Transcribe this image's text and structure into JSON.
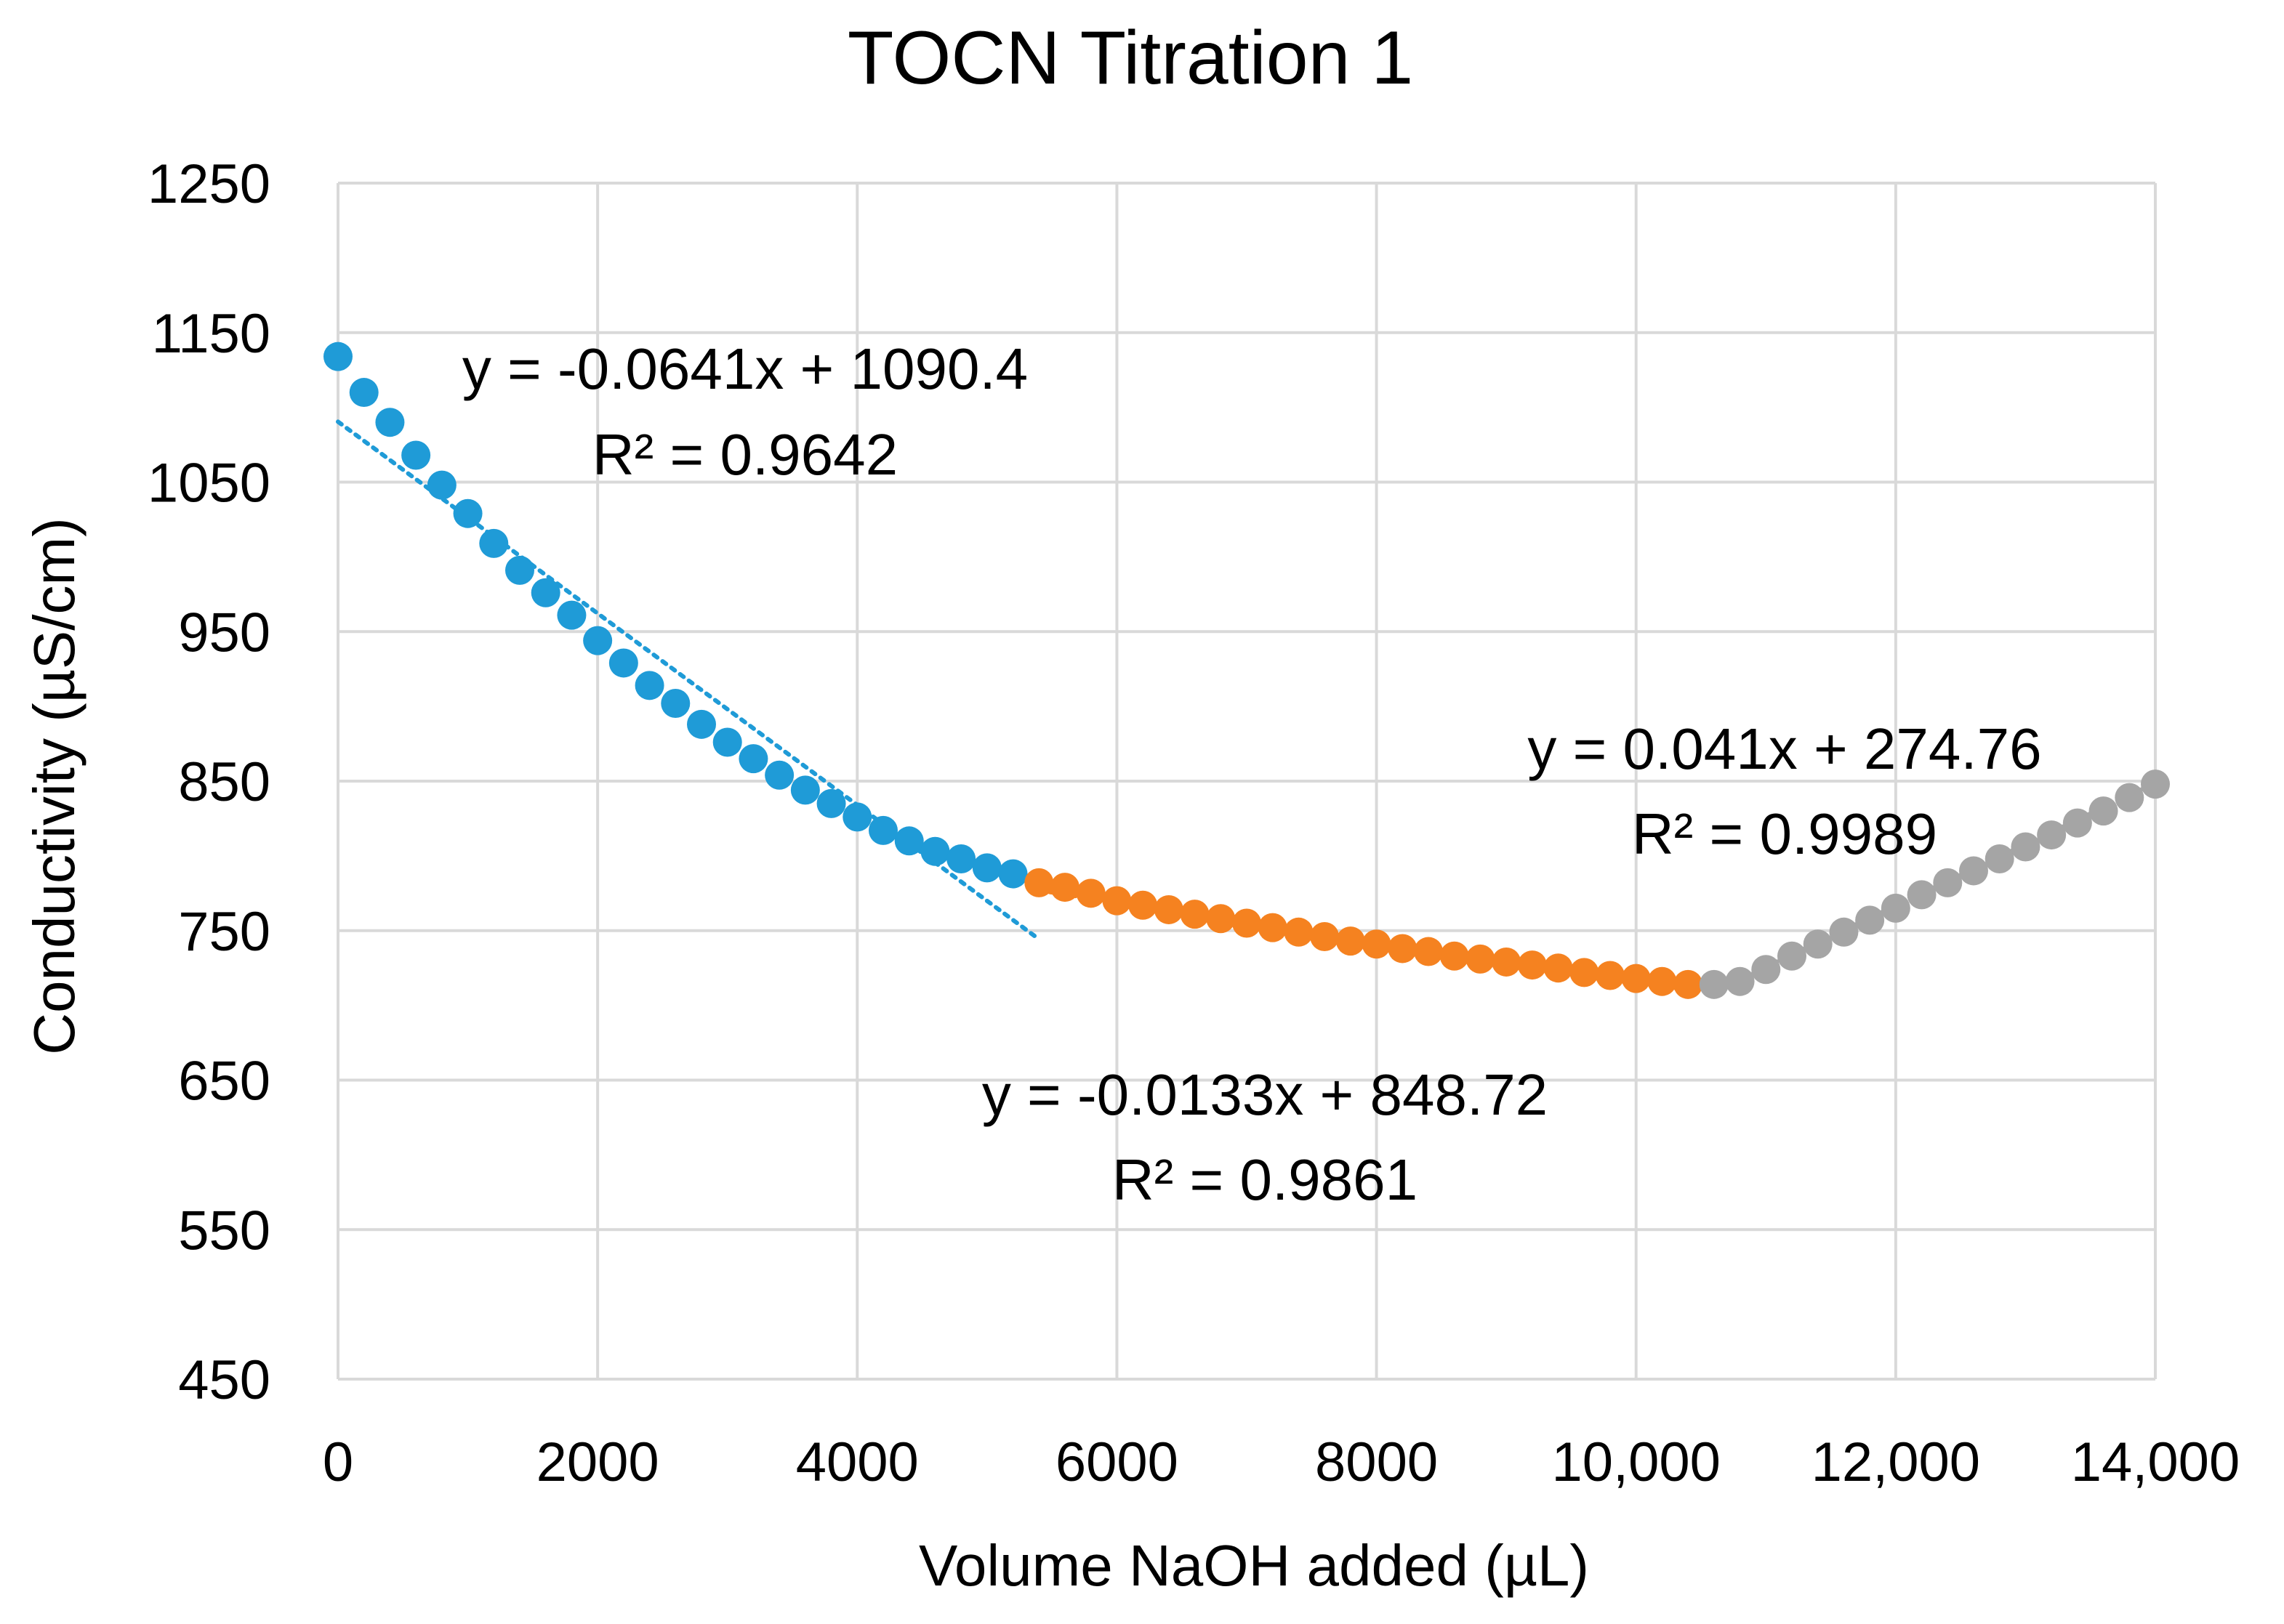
{
  "chart_data": {
    "type": "scatter",
    "title": "TOCN Titration 1",
    "xlabel": "Volume NaOH added (µL)",
    "ylabel": "Conductivity (µS/cm)",
    "xlim": [
      0,
      14000
    ],
    "ylim": [
      450,
      1250
    ],
    "x_ticks": [
      0,
      2000,
      4000,
      6000,
      8000,
      10000,
      12000,
      14000
    ],
    "x_tick_labels": [
      "0",
      "2000",
      "4000",
      "6000",
      "8000",
      "10,000",
      "12,000",
      "14,000"
    ],
    "y_ticks": [
      450,
      550,
      650,
      750,
      850,
      950,
      1050,
      1150,
      1250
    ],
    "y_tick_labels": [
      "450",
      "550",
      "650",
      "750",
      "850",
      "950",
      "1050",
      "1150",
      "1250"
    ],
    "grid": true,
    "legend": "none",
    "series": [
      {
        "color": "#1F9BD7",
        "x": [
          0,
          200,
          400,
          600,
          800,
          1000,
          1200,
          1400,
          1600,
          1800,
          2000,
          2200,
          2400,
          2600,
          2800,
          3000,
          3200,
          3400,
          3600,
          3800,
          4000,
          4200,
          4400,
          4600,
          4800,
          5000,
          5200
        ],
        "y": [
          1134,
          1110,
          1090,
          1068,
          1048,
          1029,
          1009,
          991,
          976,
          961,
          944,
          929,
          914,
          902,
          888,
          876,
          865,
          854,
          844,
          835,
          826,
          817,
          810,
          803,
          798,
          792,
          788
        ]
      },
      {
        "color": "#F58220",
        "x": [
          5400,
          5600,
          5800,
          6000,
          6200,
          6400,
          6600,
          6800,
          7000,
          7200,
          7400,
          7600,
          7800,
          8000,
          8200,
          8400,
          8600,
          8800,
          9000,
          9200,
          9400,
          9600,
          9800,
          10000,
          10200,
          10400
        ],
        "y": [
          782,
          779,
          775,
          770,
          767,
          764,
          761,
          758,
          755,
          752,
          749,
          746,
          743,
          741,
          738,
          736,
          733,
          731,
          729,
          727,
          725,
          722,
          720,
          718,
          716,
          714
        ]
      },
      {
        "color": "#A5A5A5",
        "x": [
          10600,
          10800,
          11000,
          11200,
          11400,
          11600,
          11800,
          12000,
          12200,
          12400,
          12600,
          12800,
          13000,
          13200,
          13400,
          13600,
          13800,
          14000
        ],
        "y": [
          714,
          716,
          724,
          733,
          741,
          749,
          757,
          765,
          774,
          782,
          790,
          798,
          806,
          814,
          822,
          830,
          839,
          848
        ]
      }
    ],
    "trendlines": [
      {
        "color": "#1F9BD7",
        "slope": -0.0641,
        "intercept": 1090.4,
        "x_range": [
          0,
          5400
        ],
        "equation": "y = -0.0641x + 1090.4",
        "r2": "R² = 0.9642"
      },
      {
        "color": "#F58220",
        "slope": -0.0133,
        "intercept": 848.72,
        "x_range": [
          5400,
          10400
        ],
        "equation": "y = -0.0133x + 848.72",
        "r2": "R² = 0.9861"
      },
      {
        "color": "#A5A5A5",
        "slope": 0.041,
        "intercept": 274.76,
        "x_range": [
          10600,
          14000
        ],
        "equation": "y = 0.041x + 274.76",
        "r2": "R² = 0.9989"
      }
    ]
  }
}
